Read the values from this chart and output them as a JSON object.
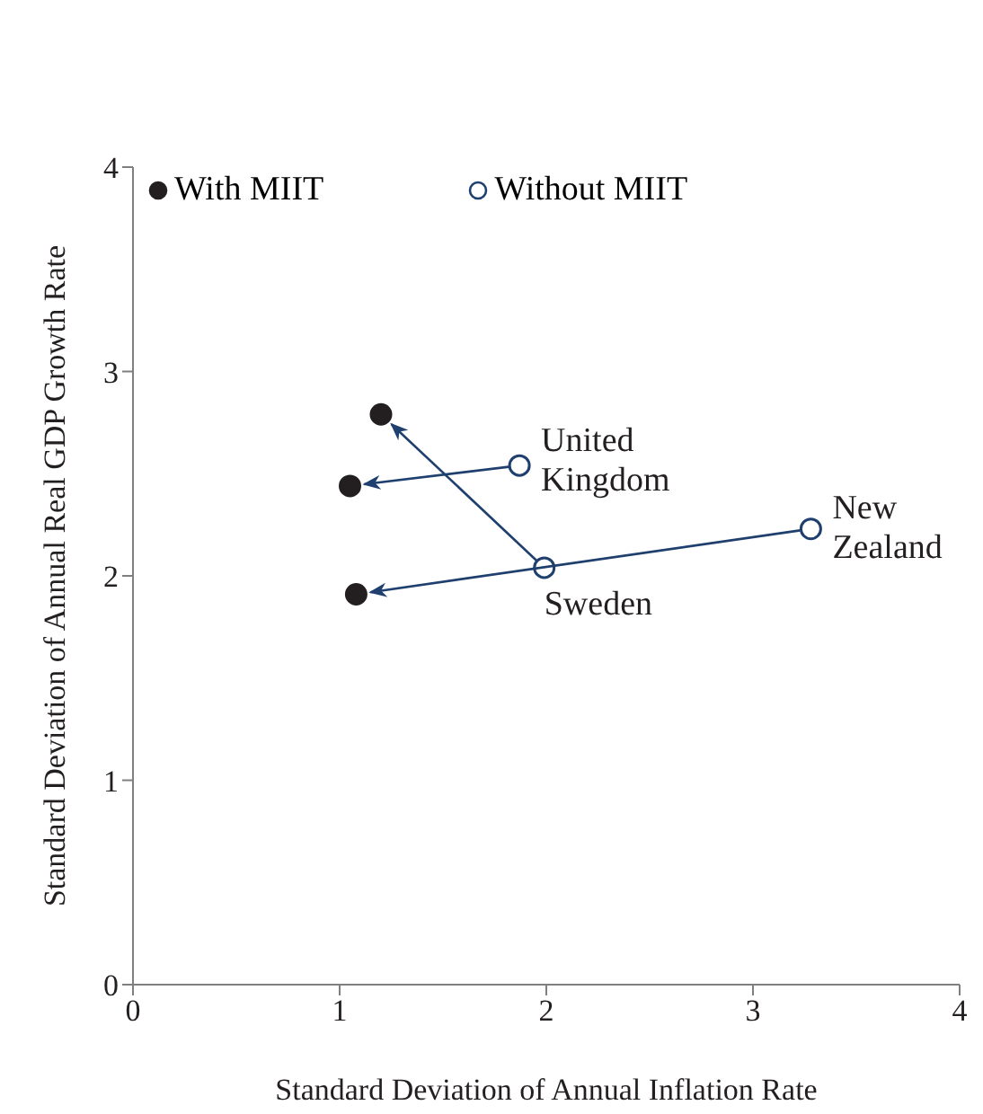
{
  "chart_data": {
    "type": "scatter",
    "xlabel": "Standard Deviation of Annual Inflation Rate",
    "ylabel": "Standard Deviation of Annual Real GDP Growth Rate",
    "series": [
      {
        "name": "With MIIT",
        "color": "#231f20",
        "x": [
          1.05,
          1.2,
          1.08
        ],
        "values": [
          2.44,
          2.79,
          1.91
        ]
      },
      {
        "name": "Without MIIT",
        "color": "#1f3f6e",
        "x": [
          1.87,
          1.99,
          3.28
        ],
        "values": [
          2.54,
          2.04,
          2.23
        ]
      }
    ],
    "annotations": [
      {
        "text": "United Kingdom",
        "x": 1.87,
        "y": 2.54
      },
      {
        "text": "Sweden",
        "x": 1.99,
        "y": 2.04
      },
      {
        "text": "New Zealand",
        "x": 3.28,
        "y": 2.23
      }
    ],
    "xlim": [
      0,
      4
    ],
    "ylim": [
      0,
      4
    ],
    "xticks": [
      0,
      1,
      2,
      3,
      4
    ],
    "yticks": [
      0,
      1,
      2,
      3,
      4
    ],
    "grid": false,
    "legend": "top left",
    "marker": "circle"
  }
}
